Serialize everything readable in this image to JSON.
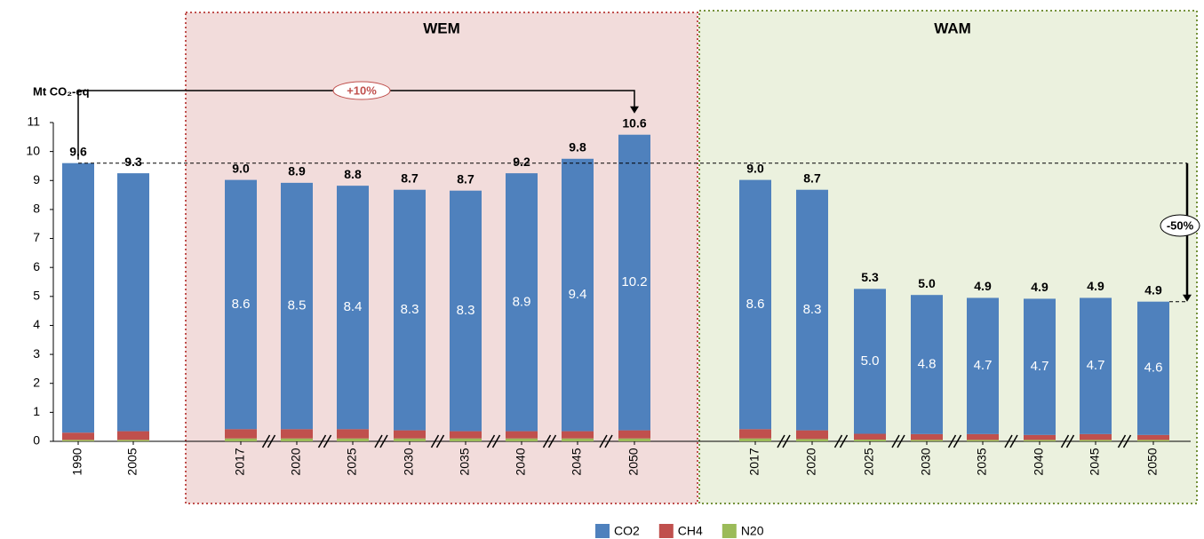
{
  "chart_data": {
    "type": "stacked_bar",
    "y_label": "Mt CO₂-eq",
    "groups": [
      "WEM",
      "WAM"
    ],
    "annotations": [
      "+10%",
      "-50%"
    ],
    "categories": [
      "1990",
      "2005",
      "2017",
      "2020",
      "2025",
      "2030",
      "2035",
      "2040",
      "2045",
      "2050",
      "2017",
      "2020",
      "2025",
      "2030",
      "2035",
      "2040",
      "2045",
      "2050"
    ],
    "series": [
      {
        "name": "CO2",
        "color": "#4f81bd",
        "values": [
          9.3,
          8.9,
          8.6,
          8.5,
          8.4,
          8.3,
          8.3,
          8.9,
          9.4,
          10.2,
          8.6,
          8.3,
          5.0,
          4.8,
          4.7,
          4.7,
          4.7,
          4.6
        ],
        "value_labels": [
          null,
          null,
          "8.6",
          "8.5",
          "8.4",
          "8.3",
          "8.3",
          "8.9",
          "9.4",
          "10.2",
          "8.6",
          "8.3",
          "5.0",
          "4.8",
          "4.7",
          "4.7",
          "4.7",
          "4.6"
        ]
      },
      {
        "name": "CH4",
        "color": "#c0504d",
        "values": [
          0.25,
          0.3,
          0.32,
          0.32,
          0.32,
          0.28,
          0.25,
          0.25,
          0.25,
          0.28,
          0.32,
          0.3,
          0.2,
          0.2,
          0.2,
          0.17,
          0.2,
          0.17
        ]
      },
      {
        "name": "N20",
        "color": "#9bbb59",
        "values": [
          0.05,
          0.05,
          0.1,
          0.1,
          0.1,
          0.1,
          0.1,
          0.1,
          0.1,
          0.1,
          0.1,
          0.08,
          0.06,
          0.05,
          0.05,
          0.05,
          0.05,
          0.05
        ]
      }
    ],
    "total_labels": [
      "9.6",
      "9.3",
      "9.0",
      "8.9",
      "8.8",
      "8.7",
      "8.7",
      "9.2",
      "9.8",
      "10.6",
      "9.0",
      "8.7",
      "5.3",
      "5.0",
      "4.9",
      "4.9",
      "4.9",
      "4.9"
    ],
    "ylim": [
      0,
      11
    ],
    "yticks": [
      0,
      1,
      2,
      3,
      4,
      5,
      6,
      7,
      8,
      9,
      10,
      11
    ],
    "legend": "bottom"
  }
}
